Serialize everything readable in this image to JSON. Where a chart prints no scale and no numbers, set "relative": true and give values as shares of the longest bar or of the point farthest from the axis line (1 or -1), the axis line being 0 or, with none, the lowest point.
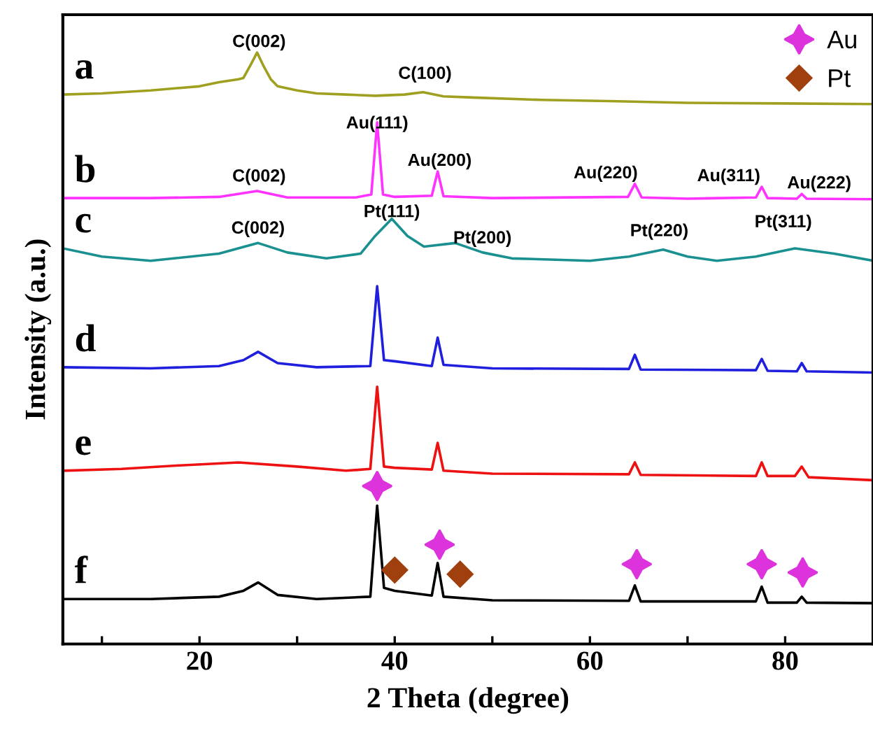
{
  "chart_data": {
    "type": "line",
    "relative": true,
    "xlabel": "2 Theta (degree)",
    "ylabel": "Intensity (a.u.)",
    "xlim": [
      6,
      89
    ],
    "xticks": [
      {
        "value": 10,
        "label": null
      },
      20,
      {
        "value": 30,
        "label": null
      },
      40,
      {
        "value": 50,
        "label": null
      },
      60,
      {
        "value": 70,
        "label": null
      },
      80
    ],
    "grid": false,
    "legend": "top right",
    "tick_labels": "x",
    "series": [
      {
        "name": "a",
        "color": "#a0a020",
        "x": [
          6,
          10,
          15,
          20,
          22,
          24,
          24.5,
          25.3,
          25.9,
          26.6,
          27.3,
          28,
          30,
          32,
          35,
          38,
          41,
          42.9,
          45,
          48,
          55,
          62,
          70,
          80,
          89
        ],
        "values": [
          0.929,
          0.931,
          0.936,
          0.943,
          0.95,
          0.955,
          0.957,
          0.981,
          1.0,
          0.976,
          0.955,
          0.943,
          0.936,
          0.931,
          0.929,
          0.927,
          0.929,
          0.933,
          0.926,
          0.924,
          0.92,
          0.918,
          0.915,
          0.914,
          0.913
        ]
      },
      {
        "name": "b",
        "color": "#ff33ff",
        "x": [
          6,
          15,
          22,
          25.9,
          29,
          36,
          37.6,
          38.2,
          38.8,
          40,
          43.8,
          44.4,
          45,
          50,
          63.9,
          64.6,
          65.3,
          70,
          77,
          77.6,
          78.2,
          81.2,
          81.7,
          82.2,
          89
        ],
        "values": [
          0.754,
          0.754,
          0.756,
          0.766,
          0.755,
          0.755,
          0.76,
          0.882,
          0.76,
          0.756,
          0.758,
          0.799,
          0.757,
          0.754,
          0.756,
          0.778,
          0.755,
          0.753,
          0.755,
          0.773,
          0.754,
          0.753,
          0.761,
          0.753,
          0.752
        ]
      },
      {
        "name": "c",
        "color": "#1a9090",
        "x": [
          6,
          10,
          15,
          22,
          26,
          29,
          33,
          36.5,
          38,
          39.7,
          41.3,
          43,
          46.2,
          49,
          52,
          60,
          64,
          67.5,
          70,
          73,
          77,
          81,
          85,
          89
        ],
        "values": [
          0.669,
          0.655,
          0.648,
          0.66,
          0.678,
          0.662,
          0.652,
          0.66,
          0.69,
          0.719,
          0.69,
          0.672,
          0.678,
          0.662,
          0.652,
          0.648,
          0.655,
          0.667,
          0.655,
          0.648,
          0.655,
          0.669,
          0.66,
          0.648
        ]
      },
      {
        "name": "d",
        "color": "#1f1fdd",
        "x": [
          6,
          15,
          22,
          24.5,
          26,
          28,
          32,
          37.5,
          38.2,
          38.9,
          40,
          43.8,
          44.4,
          45,
          50,
          64,
          64.6,
          65.2,
          77,
          77.6,
          78.2,
          81.2,
          81.7,
          82.2,
          89
        ],
        "values": [
          0.468,
          0.466,
          0.47,
          0.48,
          0.494,
          0.475,
          0.468,
          0.47,
          0.605,
          0.48,
          0.478,
          0.47,
          0.518,
          0.472,
          0.466,
          0.465,
          0.489,
          0.464,
          0.463,
          0.482,
          0.462,
          0.461,
          0.475,
          0.461,
          0.459
        ]
      },
      {
        "name": "e",
        "color": "#ee1111",
        "x": [
          6,
          12,
          18,
          24,
          30,
          35,
          37.5,
          38.2,
          38.9,
          40,
          43.8,
          44.4,
          45,
          50,
          64,
          64.6,
          65.2,
          77,
          77.6,
          78.2,
          81,
          81.7,
          82.4,
          89
        ],
        "values": [
          0.293,
          0.296,
          0.302,
          0.307,
          0.3,
          0.293,
          0.296,
          0.435,
          0.3,
          0.298,
          0.295,
          0.34,
          0.293,
          0.288,
          0.287,
          0.307,
          0.286,
          0.284,
          0.307,
          0.284,
          0.284,
          0.3,
          0.282,
          0.277
        ]
      },
      {
        "name": "f",
        "color": "#000000",
        "x": [
          6,
          15,
          22,
          24.5,
          26,
          28,
          32,
          37.5,
          38.2,
          38.9,
          40,
          43.8,
          44.4,
          45,
          50,
          64,
          64.6,
          65.2,
          77,
          77.6,
          78.2,
          81.2,
          81.7,
          82.2,
          89
        ],
        "values": [
          0.076,
          0.076,
          0.08,
          0.09,
          0.104,
          0.083,
          0.076,
          0.08,
          0.234,
          0.095,
          0.09,
          0.082,
          0.137,
          0.08,
          0.074,
          0.073,
          0.099,
          0.072,
          0.072,
          0.097,
          0.07,
          0.07,
          0.08,
          0.07,
          0.069
        ]
      },
      {
        "name": "Au",
        "type": "scatter",
        "marker": "star",
        "color": "#dd33dd",
        "x": [
          38.2,
          44.6,
          64.8,
          77.6,
          81.8
        ],
        "values": [
          0.267,
          0.168,
          0.135,
          0.135,
          0.121
        ]
      },
      {
        "name": "Pt",
        "type": "scatter",
        "marker": "diamond",
        "color": "#a0400f",
        "x": [
          40.0,
          46.7
        ],
        "values": [
          0.125,
          0.118
        ]
      }
    ],
    "annotations": [
      {
        "text": "C(002)",
        "x": 25.9,
        "y": 1.0
      },
      {
        "text": "C(100)",
        "x": 42.9,
        "y": 0.933
      },
      {
        "text": "C(002)",
        "x": 25.9,
        "y": 0.766
      },
      {
        "text": "Au(111)",
        "x": 38.2,
        "y": 0.882
      },
      {
        "text": "Au(200)",
        "x": 44.4,
        "y": 0.799
      },
      {
        "text": "Au(220)",
        "x": 64.6,
        "y": 0.778
      },
      {
        "text": "Au(311)",
        "x": 77.6,
        "y": 0.773
      },
      {
        "text": "Au(222)",
        "x": 81.7,
        "y": 0.761
      },
      {
        "text": "C(002)",
        "x": 26,
        "y": 0.678
      },
      {
        "text": "Pt(111)",
        "x": 39.7,
        "y": 0.719
      },
      {
        "text": "Pt(200)",
        "x": 46.2,
        "y": 0.678
      },
      {
        "text": "Pt(220)",
        "x": 67.5,
        "y": 0.667
      },
      {
        "text": "Pt(311)",
        "x": 81,
        "y": 0.669
      }
    ]
  }
}
